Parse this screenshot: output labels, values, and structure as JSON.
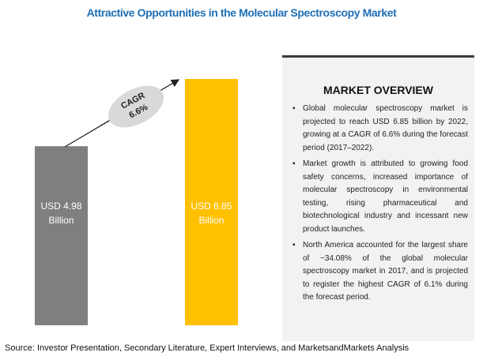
{
  "chart_data": {
    "type": "bar",
    "title": "Attractive Opportunities in the Molecular Spectroscopy Market",
    "values": [
      4.98,
      6.85
    ],
    "value_labels": [
      "USD 4.98 Billion",
      "USD 6.85 Billion"
    ],
    "colors": [
      "#7f7f7f",
      "#ffc000"
    ],
    "annotation": [
      "CAGR",
      "6.6%"
    ]
  },
  "overview": {
    "title": "MARKET OVERVIEW",
    "bullets": [
      "Global molecular spectroscopy market is projected to reach USD 6.85 billion by 2022, growing at a CAGR of 6.6% during the forecast period (2017–2022).",
      "Market growth is attributed to growing food safety concerns, increased importance of molecular spectroscopy in environmental testing, rising pharmaceutical and biotechnological industry and incessant new product launches.",
      "North America accounted for the largest share of ~34.08% of the global molecular spectroscopy market in 2017, and is projected to register the highest CAGR of 6.1% during the forecast period."
    ]
  },
  "source": "Source: Investor Presentation, Secondary Literature, Expert Interviews, and MarketsandMarkets Analysis"
}
